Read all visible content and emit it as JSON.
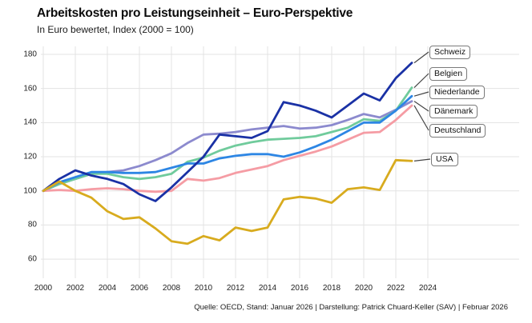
{
  "header": {
    "title": "Arbeitskosten pro Leistungseinheit – Euro-Perspektive",
    "subtitle": "In Euro bewertet, Index (2000 = 100)"
  },
  "footer": {
    "source": "Quelle: OECD, Stand: Januar 2026 | Darstellung: Patrick Chuard-Keller (SAV) | Februar 2026"
  },
  "chart_data": {
    "type": "line",
    "title": "Arbeitskosten pro Leistungseinheit – Euro-Perspektive",
    "subtitle": "In Euro bewertet, Index (2000 = 100)",
    "xlabel": "",
    "ylabel": "",
    "x": [
      2000,
      2001,
      2002,
      2003,
      2004,
      2005,
      2006,
      2007,
      2008,
      2009,
      2010,
      2011,
      2012,
      2013,
      2014,
      2015,
      2016,
      2017,
      2018,
      2019,
      2020,
      2021,
      2022,
      2023
    ],
    "x_ticks": [
      2000,
      2002,
      2004,
      2006,
      2008,
      2010,
      2012,
      2014,
      2016,
      2018,
      2020,
      2022,
      2024
    ],
    "y_ticks": [
      60,
      80,
      100,
      120,
      140,
      160,
      180
    ],
    "ylim": [
      55,
      185
    ],
    "grid": true,
    "legend_position": "right-edge-labels",
    "series": [
      {
        "name": "Schweiz",
        "color": "#1a31a5",
        "values": [
          100,
          107,
          112,
          109,
          107,
          104,
          98,
          94,
          102,
          111,
          120,
          133,
          132,
          131,
          135,
          152,
          150,
          147,
          143,
          150,
          157,
          153,
          166,
          175
        ]
      },
      {
        "name": "Belgien",
        "color": "#70cb9c",
        "values": [
          100,
          104,
          107,
          110,
          110,
          108,
          107,
          108,
          110,
          117,
          119.5,
          123.5,
          126.5,
          128.5,
          130,
          130.5,
          131,
          132,
          134.5,
          137,
          142,
          141,
          147,
          160.5
        ]
      },
      {
        "name": "Niederlande",
        "color": "#2d86e4",
        "values": [
          100,
          105,
          108,
          111,
          111,
          110.5,
          110.5,
          111,
          113.5,
          116,
          116,
          119,
          120.5,
          121.5,
          121.5,
          120,
          122.5,
          126,
          130,
          135,
          140,
          140,
          147,
          155.5
        ]
      },
      {
        "name": "Dänemark",
        "color": "#8c8ace",
        "values": [
          100,
          104,
          107,
          110,
          111,
          112,
          114.5,
          118,
          122,
          128,
          133,
          133.5,
          134.5,
          136,
          137,
          138,
          136.5,
          137,
          138.5,
          141.5,
          145,
          143,
          147.5,
          152.5
        ]
      },
      {
        "name": "Deutschland",
        "color": "#f59ca4",
        "values": [
          100,
          100.5,
          100,
          101,
          101.5,
          101,
          100,
          99.5,
          100,
          107,
          106,
          107.5,
          110.5,
          112.5,
          114.5,
          118,
          120.5,
          123,
          126,
          130,
          134,
          134.5,
          141.5,
          150
        ]
      },
      {
        "name": "USA",
        "color": "#d8ab1e",
        "values": [
          100,
          105.5,
          100,
          96,
          88,
          83.5,
          84.5,
          78,
          70.5,
          69,
          73.5,
          71,
          78.5,
          76.5,
          78.5,
          95,
          96.5,
          95.5,
          93,
          101,
          102,
          100.5,
          118,
          117.5
        ]
      }
    ],
    "grid_color": "#e3e3e3"
  }
}
